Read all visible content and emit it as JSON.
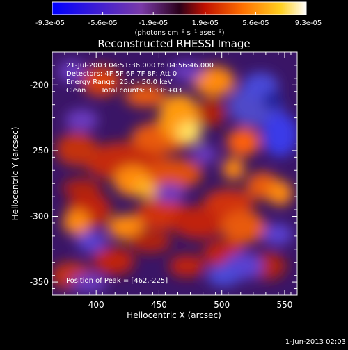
{
  "chart_data": {
    "type": "heatmap",
    "title": "Reconstructed RHESSI Image",
    "xlabel": "Heliocentric X (arcsec)",
    "ylabel": "Heliocentric Y (arcsec)",
    "x_ticks": [
      "400",
      "450",
      "500",
      "550"
    ],
    "y_ticks": [
      "-200",
      "-250",
      "-300",
      "-350"
    ],
    "xlim": [
      365,
      560
    ],
    "ylim": [
      -360,
      -175
    ],
    "colorbar": {
      "ticks": [
        "-9.3e-05",
        "-5.6e-05",
        "-1.9e-05",
        "1.9e-05",
        "5.6e-05",
        "9.3e-05"
      ],
      "range": [
        -9.3e-05,
        9.3e-05
      ]
    },
    "colorbar_unit": "(photons cm⁻² s⁻¹ asec⁻²)",
    "annotations": {
      "time_range": "21-Jul-2003 04:51:36.000 to 04:56:46.000",
      "detectors": "Detectors: 4F 5F 6F 7F 8F; Att 0",
      "energy": "Energy Range: 25.0 - 50.0 keV",
      "method": "Clean",
      "total_counts": "Total counts: 3.33E+03",
      "peak": "Position of Peak = [462,-225]"
    },
    "peak": {
      "x": 462,
      "y": -225
    },
    "footer_date": "1-Jun-2013 02:03"
  }
}
